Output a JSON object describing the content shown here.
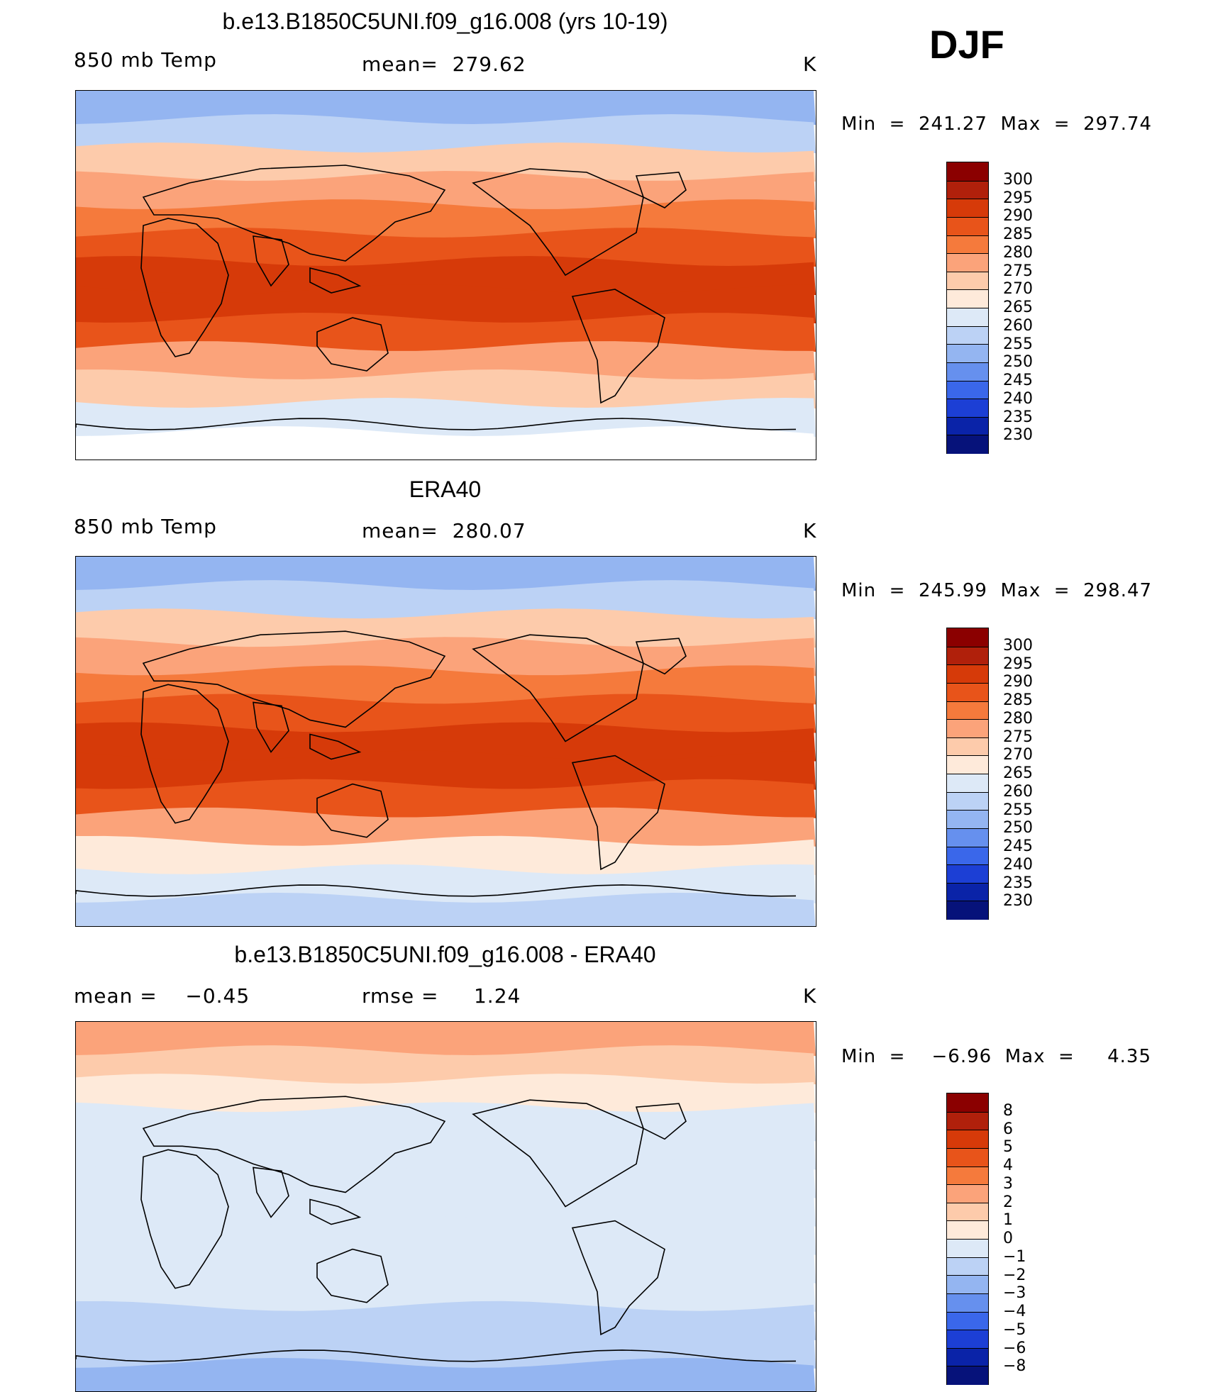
{
  "season": "DJF",
  "panels": [
    {
      "title": "b.e13.B1850C5UNI.f09_g16.008 (yrs 10-19)",
      "left_label": "850 mb Temp",
      "center_label": "mean=  279.62",
      "units": "K",
      "minmax": "Min  =  241.27  Max  =  297.74",
      "colorbar": {
        "labels": [
          "300",
          "295",
          "290",
          "285",
          "280",
          "275",
          "270",
          "265",
          "260",
          "255",
          "250",
          "245",
          "240",
          "235",
          "230"
        ],
        "colors": [
          "#8b0000",
          "#b0200b",
          "#d63a09",
          "#e8541a",
          "#f57a3c",
          "#fba37a",
          "#fdcbab",
          "#feeada",
          "#dde9f7",
          "#bcd2f5",
          "#94b5f1",
          "#6690ee",
          "#3a67ea",
          "#1c3fd5",
          "#0a23a8",
          "#06127a"
        ]
      },
      "lat_bands": [
        "#94b5f1",
        "#bcd2f5",
        "#fdcbab",
        "#fba37a",
        "#f57a3c",
        "#e8541a",
        "#d63a09",
        "#d63a09",
        "#e8541a",
        "#fba37a",
        "#fdcbab",
        "#dde9f7",
        "#ffffff"
      ]
    },
    {
      "title": "ERA40",
      "left_label": "850 mb Temp",
      "center_label": "mean=  280.07",
      "units": "K",
      "minmax": "Min  =  245.99  Max  =  298.47",
      "colorbar": {
        "labels": [
          "300",
          "295",
          "290",
          "285",
          "280",
          "275",
          "270",
          "265",
          "260",
          "255",
          "250",
          "245",
          "240",
          "235",
          "230"
        ],
        "colors": [
          "#8b0000",
          "#b0200b",
          "#d63a09",
          "#e8541a",
          "#f57a3c",
          "#fba37a",
          "#fdcbab",
          "#feeada",
          "#dde9f7",
          "#bcd2f5",
          "#94b5f1",
          "#6690ee",
          "#3a67ea",
          "#1c3fd5",
          "#0a23a8",
          "#06127a"
        ]
      },
      "lat_bands": [
        "#94b5f1",
        "#bcd2f5",
        "#fdcbab",
        "#fba37a",
        "#f57a3c",
        "#e8541a",
        "#d63a09",
        "#d63a09",
        "#e8541a",
        "#fba37a",
        "#feeada",
        "#dde9f7",
        "#bcd2f5"
      ]
    },
    {
      "title": "b.e13.B1850C5UNI.f09_g16.008 - ERA40",
      "left_label": "mean =    −0.45",
      "center_label": "rmse =     1.24",
      "units": "K",
      "minmax": "Min  =    −6.96  Max  =     4.35",
      "colorbar": {
        "labels": [
          "8",
          "6",
          "5",
          "4",
          "3",
          "2",
          "1",
          "0",
          "−1",
          "−2",
          "−3",
          "−4",
          "−5",
          "−6",
          "−8"
        ],
        "colors": [
          "#8b0000",
          "#b0200b",
          "#d63a09",
          "#e8541a",
          "#f57a3c",
          "#fba37a",
          "#fdcbab",
          "#feeada",
          "#dde9f7",
          "#bcd2f5",
          "#94b5f1",
          "#6690ee",
          "#3a67ea",
          "#1c3fd5",
          "#0a23a8",
          "#06127a"
        ]
      },
      "lat_bands": [
        "#fba37a",
        "#fdcbab",
        "#feeada",
        "#dde9f7",
        "#dde9f7",
        "#dde9f7",
        "#dde9f7",
        "#dde9f7",
        "#dde9f7",
        "#dde9f7",
        "#bcd2f5",
        "#bcd2f5",
        "#94b5f1"
      ]
    }
  ]
}
